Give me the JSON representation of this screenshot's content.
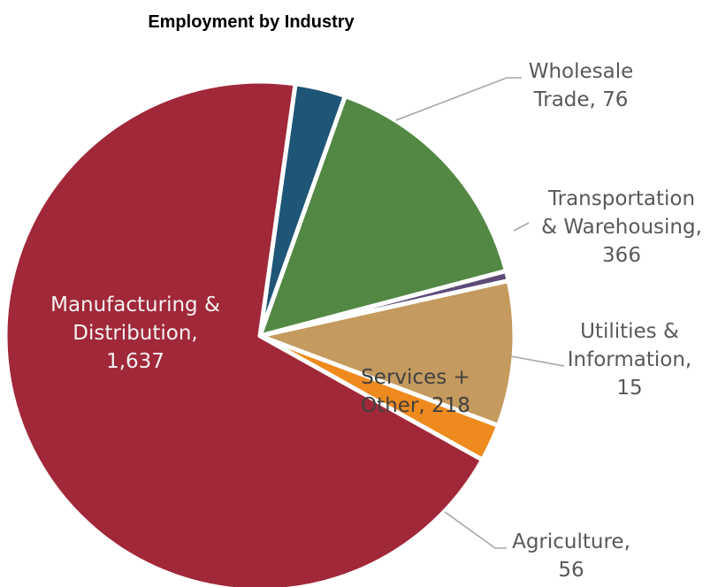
{
  "chart_data": {
    "type": "pie",
    "title": "Employment by Industry",
    "start_angle_deg": 8,
    "slices": [
      {
        "name": "Wholesale Trade",
        "value": 76,
        "color": "#1f5577",
        "label_lines": [
          "Wholesale",
          "Trade, 76"
        ]
      },
      {
        "name": "Transportation & Warehousing",
        "value": 366,
        "color": "#528843",
        "label_lines": [
          "Transportation",
          "& Warehousing,",
          "366"
        ]
      },
      {
        "name": "Utilities & Information",
        "value": 15,
        "color": "#5e4b7a",
        "label_lines": [
          "Utilities &",
          "Information,",
          "15"
        ]
      },
      {
        "name": "Services + Other",
        "value": 218,
        "color": "#c49a5e",
        "label_lines": [
          "Services +",
          "Other, 218"
        ]
      },
      {
        "name": "Agriculture",
        "value": 56,
        "color": "#ef8a1e",
        "label_lines": [
          "Agriculture,",
          "56"
        ]
      },
      {
        "name": "Manufacturing & Distribution",
        "value": 1637,
        "color": "#a12838",
        "label_lines": [
          "Manufacturing &",
          "Distribution,",
          "1,637"
        ]
      }
    ]
  }
}
